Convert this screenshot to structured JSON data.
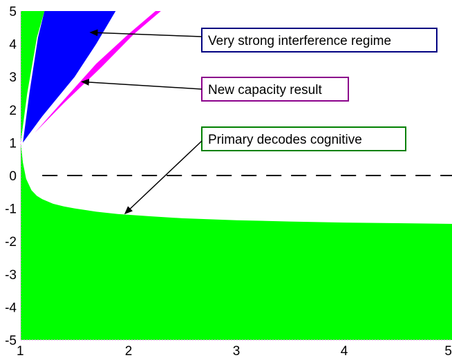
{
  "chart_data": {
    "type": "area",
    "title": "",
    "xlabel": "",
    "ylabel": "",
    "xlim": [
      1,
      5
    ],
    "ylim": [
      -5,
      5
    ],
    "x_ticks": [
      1,
      2,
      3,
      4,
      5
    ],
    "y_ticks": [
      -5,
      -4,
      -3,
      -2,
      -1,
      0,
      1,
      2,
      3,
      4,
      5
    ],
    "regions": [
      {
        "key": "green",
        "color": "#00ff00",
        "label": "Primary decodes cognitive",
        "upper_boundary": {
          "x": [
            1.0,
            1.02,
            1.05,
            1.1,
            1.15,
            1.2,
            1.3,
            1.4,
            1.5,
            1.7,
            1.9,
            2.2,
            2.5,
            3.0,
            3.5,
            4.0,
            4.5,
            5.0
          ],
          "y": [
            1.0,
            0.4,
            -0.1,
            -0.45,
            -0.62,
            -0.72,
            -0.86,
            -0.94,
            -1.0,
            -1.1,
            -1.17,
            -1.24,
            -1.3,
            -1.36,
            -1.4,
            -1.43,
            -1.45,
            -1.47
          ]
        },
        "upper_wedge": {
          "left_edge": {
            "x": [
              1.0,
              1.0
            ],
            "y": [
              1.0,
              5.0
            ]
          },
          "right_edge": {
            "x": [
              1.0,
              1.06,
              1.15,
              1.22
            ],
            "y": [
              1.0,
              2.5,
              4.2,
              5.0
            ]
          }
        }
      },
      {
        "key": "blue",
        "color": "#0000ff",
        "label": "Very strong interference regime",
        "left_edge": {
          "x": [
            1.02,
            1.08,
            1.16,
            1.22
          ],
          "y": [
            1.0,
            2.5,
            4.2,
            5.0
          ]
        },
        "right_edge": {
          "x": [
            1.02,
            1.2,
            1.5,
            1.7,
            1.88
          ],
          "y": [
            1.0,
            1.8,
            3.0,
            4.0,
            5.0
          ]
        }
      },
      {
        "key": "magenta",
        "color": "#ff00ff",
        "label": "New capacity result",
        "left_edge": {
          "x": [
            1.13,
            1.4,
            1.7,
            2.0,
            2.25
          ],
          "y": [
            1.3,
            2.3,
            3.4,
            4.3,
            5.0
          ]
        },
        "right_edge": {
          "x": [
            1.13,
            1.4,
            1.75,
            2.05,
            2.3
          ],
          "y": [
            1.3,
            2.2,
            3.3,
            4.3,
            5.0
          ]
        }
      }
    ],
    "reference_line": {
      "y": 0,
      "x": [
        1.2,
        5.0
      ],
      "style": "dashed",
      "color": "#000000"
    },
    "annotations": [
      {
        "text": "Very strong interference regime",
        "border_color": "#000080",
        "arrow_to": {
          "x": 1.65,
          "y": 4.35
        }
      },
      {
        "text": "New capacity result",
        "border_color": "#8b008b",
        "arrow_to": {
          "x": 1.57,
          "y": 2.85
        }
      },
      {
        "text": "Primary decodes cognitive",
        "border_color": "#008000",
        "arrow_to": {
          "x": 1.97,
          "y": -1.15
        }
      }
    ]
  }
}
